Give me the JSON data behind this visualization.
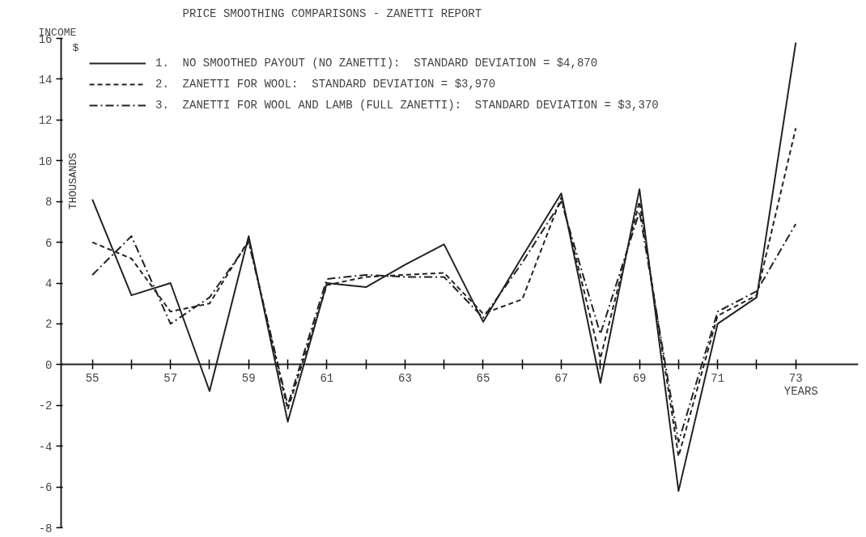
{
  "chart_data": {
    "type": "line",
    "title": "PRICE SMOOTHING COMPARISONS - ZANETTI REPORT",
    "xlabel": "YEARS",
    "ylabel": "THOUSANDS",
    "annotations": [
      "INCOME",
      "$"
    ],
    "x": [
      55,
      56,
      57,
      58,
      59,
      60,
      61,
      62,
      63,
      64,
      65,
      66,
      67,
      68,
      69,
      70,
      71,
      72,
      73
    ],
    "series": [
      {
        "name": "1.  NO SMOOTHED PAYOUT (NO ZANETTI):  STANDARD DEVIATION = $4,870",
        "color": "#222222",
        "line_style": "solid",
        "values": [
          8.1,
          3.4,
          4.0,
          -1.3,
          6.3,
          -2.8,
          4.0,
          3.8,
          4.9,
          5.9,
          2.1,
          5.3,
          8.4,
          -0.9,
          8.6,
          -6.2,
          2.0,
          3.3,
          15.8
        ]
      },
      {
        "name": "2.  ZANETTI FOR WOOL:  STANDARD DEVIATION = $3,970",
        "color": "#222222",
        "line_style": "dashed",
        "values": [
          6.0,
          5.2,
          2.6,
          3.0,
          6.1,
          -2.2,
          3.9,
          4.3,
          4.4,
          4.5,
          2.5,
          3.2,
          8.2,
          0.3,
          8.0,
          -4.5,
          2.4,
          3.4,
          11.6
        ]
      },
      {
        "name": "3.  ZANETTI FOR WOOL AND LAMB (FULL ZANETTI):  STANDARD DEVIATION = $3,370",
        "color": "#222222",
        "line_style": "dashdot",
        "values": [
          4.4,
          6.3,
          2.0,
          3.3,
          6.0,
          -2.0,
          4.2,
          4.4,
          4.3,
          4.3,
          2.3,
          5.0,
          8.0,
          1.5,
          7.5,
          -3.8,
          2.6,
          3.6,
          6.9
        ]
      }
    ],
    "xlim": [
      54.2,
      74.6
    ],
    "ylim": [
      -8,
      16
    ],
    "xticks": [
      55,
      {
        "value": 56,
        "label": null
      },
      57,
      {
        "value": 58,
        "label": null
      },
      59,
      {
        "value": 60,
        "label": null
      },
      61,
      {
        "value": 62,
        "label": null
      },
      63,
      {
        "value": 64,
        "label": null
      },
      65,
      {
        "value": 66,
        "label": null
      },
      67,
      {
        "value": 68,
        "label": null
      },
      69,
      {
        "value": 70,
        "label": null
      },
      71,
      {
        "value": 72,
        "label": null
      },
      73
    ],
    "yticks": [
      -8,
      -6,
      -4,
      -2,
      0,
      2,
      4,
      6,
      8,
      10,
      12,
      14,
      16
    ],
    "grid": false,
    "legend": "top left",
    "marker": "none"
  }
}
